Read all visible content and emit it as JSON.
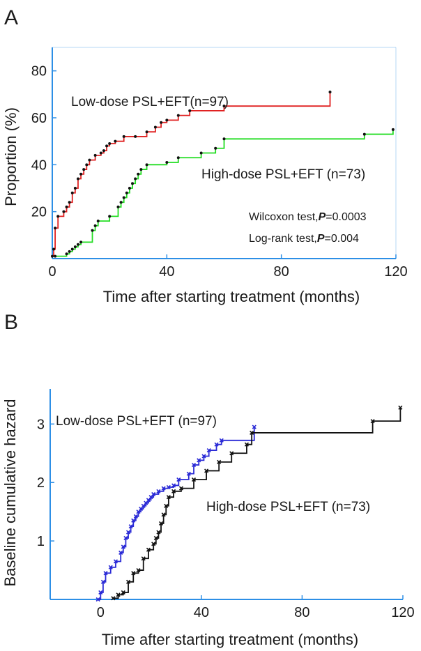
{
  "chart_data": [
    {
      "panel_label": "A",
      "type": "line",
      "step": true,
      "xlabel": "Time after starting treatment  (months)",
      "ylabel": "Proportion  (%)",
      "xlim": [
        0,
        120
      ],
      "ylim": [
        0,
        90
      ],
      "xticks": [
        0,
        40,
        80,
        120
      ],
      "yticks": [
        20,
        40,
        60,
        80
      ],
      "grid": false,
      "annotations": [
        {
          "text_before": "Wilcoxon test,",
          "italic": "P",
          "text_after": "=0.0003"
        },
        {
          "text_before": "Log-rank test,",
          "italic": "P",
          "text_after": "=0.004"
        }
      ],
      "series": [
        {
          "name": "Low-dose PSL+EFT(n=97)",
          "color": "#e02020",
          "x": [
            0,
            0.5,
            1,
            2,
            4,
            5,
            6,
            7,
            8,
            9,
            10,
            11,
            12,
            13,
            15,
            17,
            18,
            19,
            20,
            22,
            25,
            29,
            33,
            36,
            38,
            40,
            44,
            48,
            60,
            97
          ],
          "y": [
            1,
            4,
            13,
            18,
            20,
            22,
            24,
            28,
            30,
            34,
            36,
            38,
            40,
            42,
            44,
            45,
            46,
            48,
            49,
            50,
            52,
            52,
            54,
            56,
            58,
            59,
            61,
            63,
            65,
            71
          ]
        },
        {
          "name": "High-dose PSL+EFT (n=73)",
          "color": "#22dd22",
          "x": [
            1,
            5,
            6,
            7,
            8,
            9,
            10,
            14,
            15,
            16,
            20,
            23,
            24,
            25,
            26,
            27,
            28,
            29,
            30,
            31,
            33,
            40,
            44,
            52,
            57,
            60,
            109,
            119
          ],
          "y": [
            1,
            2,
            3,
            4,
            5,
            6,
            7,
            12,
            14,
            16,
            18,
            22,
            24,
            26,
            28,
            30,
            32,
            34,
            36,
            38,
            40,
            41,
            43,
            45,
            47,
            51,
            53,
            55
          ]
        }
      ]
    },
    {
      "panel_label": "B",
      "type": "line",
      "step": true,
      "xlabel": "Time after starting treatment  (months)",
      "ylabel": "Baseline cumulative hazard",
      "xlim": [
        -20,
        120
      ],
      "ylim": [
        0,
        3.6
      ],
      "xticks": [
        0,
        40,
        80,
        120
      ],
      "yticks": [
        1,
        2,
        3
      ],
      "grid": false,
      "series": [
        {
          "name": "Low-dose PSL+EFT (n=97)",
          "color": "#2a2ad6",
          "x": [
            -1,
            0,
            1,
            2,
            4,
            6,
            8,
            9,
            10,
            11,
            12,
            13,
            14,
            15,
            16,
            17,
            18,
            19,
            20,
            21,
            23,
            25,
            27,
            29,
            31,
            35,
            37,
            39,
            41,
            43,
            46,
            48,
            61
          ],
          "y": [
            0,
            0.12,
            0.3,
            0.45,
            0.55,
            0.65,
            0.8,
            0.9,
            1.05,
            1.15,
            1.25,
            1.35,
            1.42,
            1.5,
            1.55,
            1.6,
            1.65,
            1.7,
            1.75,
            1.8,
            1.85,
            1.9,
            1.92,
            1.95,
            2.05,
            2.15,
            2.3,
            2.38,
            2.45,
            2.55,
            2.65,
            2.72,
            2.95
          ]
        },
        {
          "name": "High-dose PSL+EFT (n=73)",
          "color": "#111111",
          "x": [
            5,
            7,
            9,
            11,
            13,
            15,
            17,
            19,
            21,
            22,
            23,
            24,
            25,
            26,
            27,
            29,
            32,
            37,
            42,
            47,
            52,
            58,
            60,
            108,
            119
          ],
          "y": [
            0.02,
            0.08,
            0.12,
            0.3,
            0.45,
            0.5,
            0.7,
            0.85,
            0.95,
            1.05,
            1.15,
            1.3,
            1.45,
            1.6,
            1.75,
            1.85,
            1.9,
            2.05,
            2.2,
            2.35,
            2.5,
            2.65,
            2.85,
            3.05,
            3.28
          ]
        }
      ]
    }
  ]
}
